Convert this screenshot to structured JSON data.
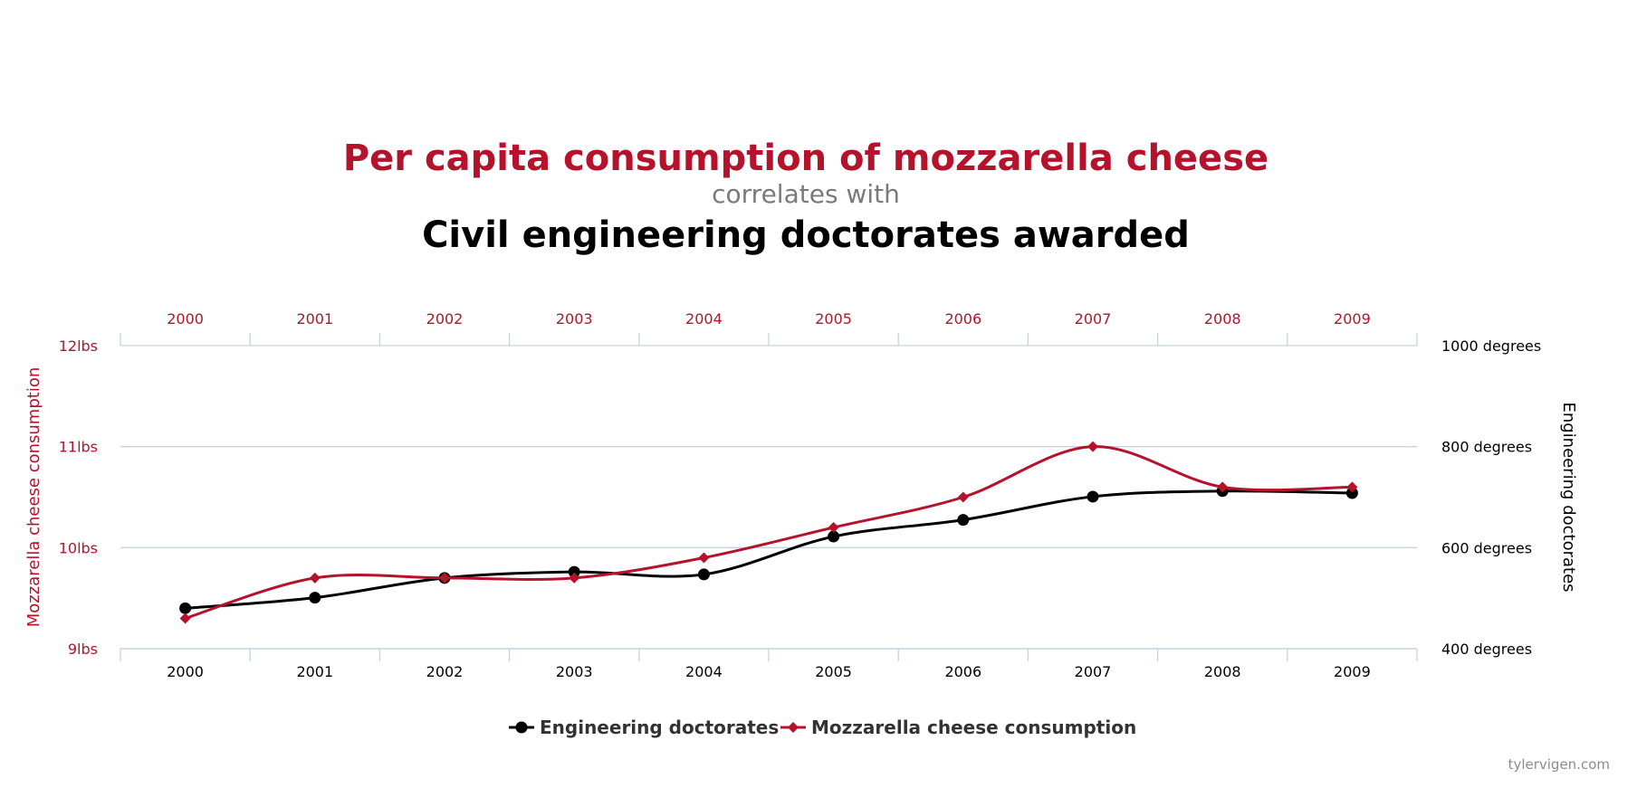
{
  "title": "Per capita consumption of mozzarella cheese",
  "connector": "correlates with",
  "subtitle": "Civil engineering doctorates awarded",
  "credit": "tylervigen.com",
  "colors": {
    "cheese": "#b5132b",
    "doctorates": "#000000",
    "grid": "#c5d3df"
  },
  "chart_data": {
    "type": "line",
    "x": [
      "2000",
      "2001",
      "2002",
      "2003",
      "2004",
      "2005",
      "2006",
      "2007",
      "2008",
      "2009"
    ],
    "y_left": {
      "label": "Mozzarella cheese consumption",
      "range": [
        9,
        12
      ],
      "ticks": [
        {
          "v": 9,
          "t": "9lbs"
        },
        {
          "v": 10,
          "t": "10lbs"
        },
        {
          "v": 11,
          "t": "11lbs"
        },
        {
          "v": 12,
          "t": "12lbs"
        }
      ]
    },
    "y_right": {
      "label": "Engineering doctorates",
      "range": [
        400,
        1000
      ],
      "ticks": [
        {
          "v": 400,
          "t": "400 degrees"
        },
        {
          "v": 600,
          "t": "600 degrees"
        },
        {
          "v": 800,
          "t": "800 degrees"
        },
        {
          "v": 1000,
          "t": "1000 degrees"
        }
      ]
    },
    "grid": true,
    "legend_position": "bottom",
    "series": [
      {
        "name": "Engineering doctorates",
        "axis": "right",
        "color": "#000000",
        "marker": "circle",
        "values": [
          480,
          501,
          540,
          552,
          547,
          622,
          655,
          701,
          712,
          708
        ]
      },
      {
        "name": "Mozzarella cheese consumption",
        "axis": "left",
        "color": "#b5132b",
        "marker": "diamond",
        "values": [
          9.3,
          9.7,
          9.7,
          9.7,
          9.9,
          10.2,
          10.5,
          11.0,
          10.6,
          10.6
        ]
      }
    ]
  }
}
